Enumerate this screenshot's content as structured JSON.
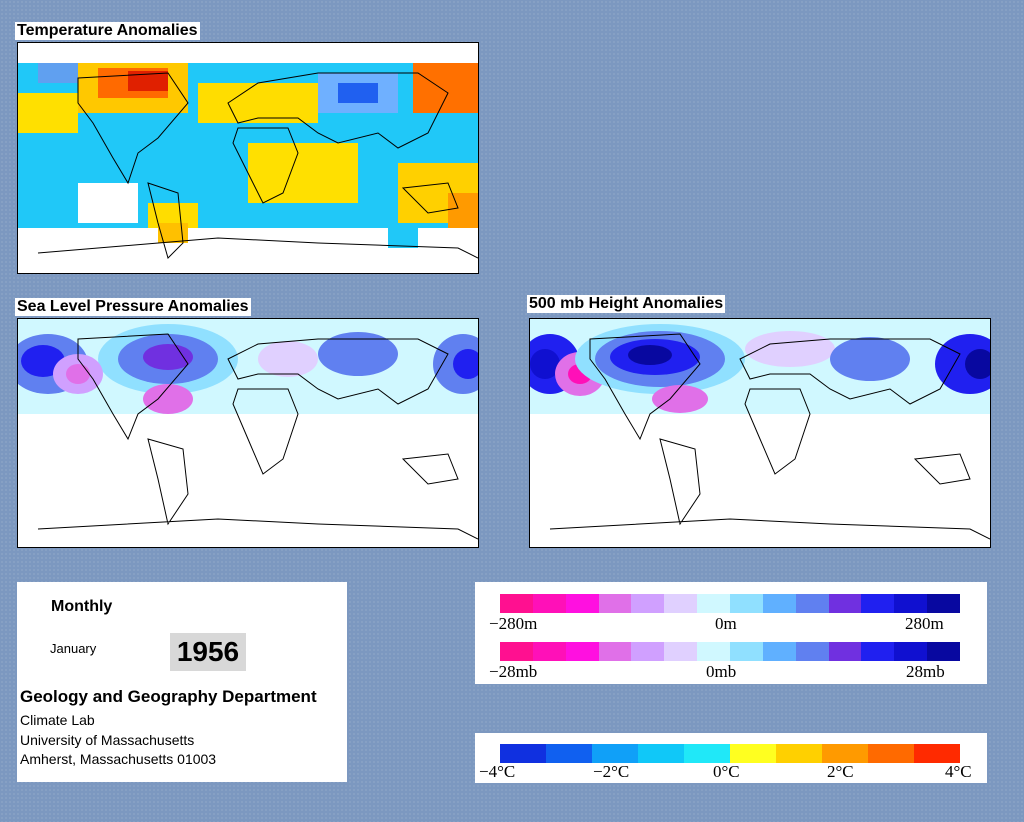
{
  "panels": {
    "temperature": {
      "title": "Temperature Anomalies"
    },
    "pressure": {
      "title": "Sea Level Pressure Anomalies"
    },
    "height": {
      "title": "500 mb Height Anomalies"
    }
  },
  "info": {
    "period": "Monthly",
    "month": "January",
    "year": "1956",
    "department": "Geology and Geography Department",
    "lab": "Climate Lab",
    "university": "University of Massachusetts",
    "address": "Amherst, Massachusetts 01003"
  },
  "legends": {
    "height_scale": {
      "min": "−280m",
      "mid": "0m",
      "max": "280m"
    },
    "pressure_scale": {
      "min": "−28mb",
      "mid": "0mb",
      "max": "28mb"
    },
    "temperature_scale": {
      "labels": [
        "−4°C",
        "−2°C",
        "0°C",
        "2°C",
        "4°C"
      ]
    }
  },
  "colors": {
    "background": "#7c98c0",
    "anomaly_palette": [
      "#ff1090",
      "#ff10b8",
      "#ff10e0",
      "#e070e8",
      "#d0a0ff",
      "#e0d0ff",
      "#d0f8ff",
      "#90e0ff",
      "#60b0ff",
      "#6080f0",
      "#7030e0",
      "#2020f0",
      "#1010d0",
      "#0808a0"
    ],
    "temperature_palette": [
      "#1030e0",
      "#1060f0",
      "#10a0f8",
      "#10c8f8",
      "#20e8f8",
      "#ffff20",
      "#ffd000",
      "#ff9a00",
      "#ff6a00",
      "#ff2a00"
    ]
  }
}
